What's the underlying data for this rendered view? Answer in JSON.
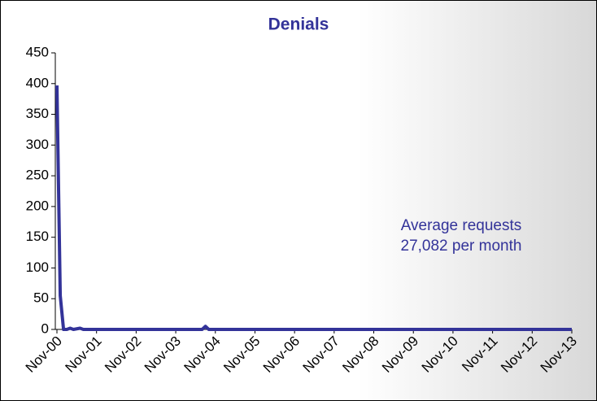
{
  "chart_data": {
    "type": "line",
    "title": "Denials",
    "annotation": [
      "Average requests",
      "27,082 per month"
    ],
    "categories": [
      "Nov-00",
      null,
      null,
      null,
      null,
      null,
      null,
      null,
      null,
      null,
      null,
      null,
      "Nov-01",
      null,
      null,
      null,
      null,
      null,
      null,
      null,
      null,
      null,
      null,
      null,
      "Nov-02",
      null,
      null,
      null,
      null,
      null,
      null,
      null,
      null,
      null,
      null,
      null,
      "Nov-03",
      null,
      null,
      null,
      null,
      null,
      null,
      null,
      null,
      null,
      null,
      null,
      "Nov-04",
      null,
      null,
      null,
      null,
      null,
      null,
      null,
      null,
      null,
      null,
      null,
      "Nov-05",
      null,
      null,
      null,
      null,
      null,
      null,
      null,
      null,
      null,
      null,
      null,
      "Nov-06",
      null,
      null,
      null,
      null,
      null,
      null,
      null,
      null,
      null,
      null,
      null,
      "Nov-07",
      null,
      null,
      null,
      null,
      null,
      null,
      null,
      null,
      null,
      null,
      null,
      "Nov-08",
      null,
      null,
      null,
      null,
      null,
      null,
      null,
      null,
      null,
      null,
      null,
      "Nov-09",
      null,
      null,
      null,
      null,
      null,
      null,
      null,
      null,
      null,
      null,
      null,
      "Nov-10",
      null,
      null,
      null,
      null,
      null,
      null,
      null,
      null,
      null,
      null,
      null,
      "Nov-11",
      null,
      null,
      null,
      null,
      null,
      null,
      null,
      null,
      null,
      null,
      null,
      "Nov-12",
      null,
      null,
      null,
      null,
      null,
      null,
      null,
      null,
      null,
      null,
      null,
      "Nov-13"
    ],
    "values": [
      397,
      55,
      0,
      0,
      2,
      0,
      1,
      2,
      0,
      0,
      0,
      0,
      0,
      0,
      0,
      0,
      0,
      0,
      0,
      0,
      0,
      0,
      0,
      0,
      0,
      0,
      0,
      0,
      0,
      0,
      0,
      0,
      0,
      0,
      0,
      0,
      0,
      0,
      0,
      0,
      0,
      0,
      0,
      0,
      0,
      5,
      0,
      0,
      0,
      0,
      0,
      0,
      0,
      0,
      0,
      0,
      0,
      0,
      0,
      0,
      0,
      0,
      0,
      0,
      0,
      0,
      0,
      0,
      0,
      0,
      0,
      0,
      0,
      0,
      0,
      0,
      0,
      0,
      0,
      0,
      0,
      0,
      0,
      0,
      0,
      0,
      0,
      0,
      0,
      0,
      0,
      0,
      0,
      0,
      0,
      0,
      0,
      0,
      0,
      0,
      0,
      0,
      0,
      0,
      0,
      0,
      0,
      0,
      0,
      0,
      0,
      0,
      0,
      0,
      0,
      0,
      0,
      0,
      0,
      0,
      0,
      0,
      0,
      0,
      0,
      0,
      0,
      0,
      0,
      0,
      0,
      0,
      0,
      0,
      0,
      0,
      0,
      0,
      0,
      0,
      0,
      0,
      0,
      0,
      0,
      0,
      0,
      0,
      0,
      0,
      0,
      0,
      0,
      0,
      0,
      0,
      0
    ],
    "color": "#333399",
    "ylim": [
      0,
      450
    ],
    "yticks": [
      0,
      50,
      100,
      150,
      200,
      250,
      300,
      350,
      400,
      450
    ],
    "grid": false
  }
}
